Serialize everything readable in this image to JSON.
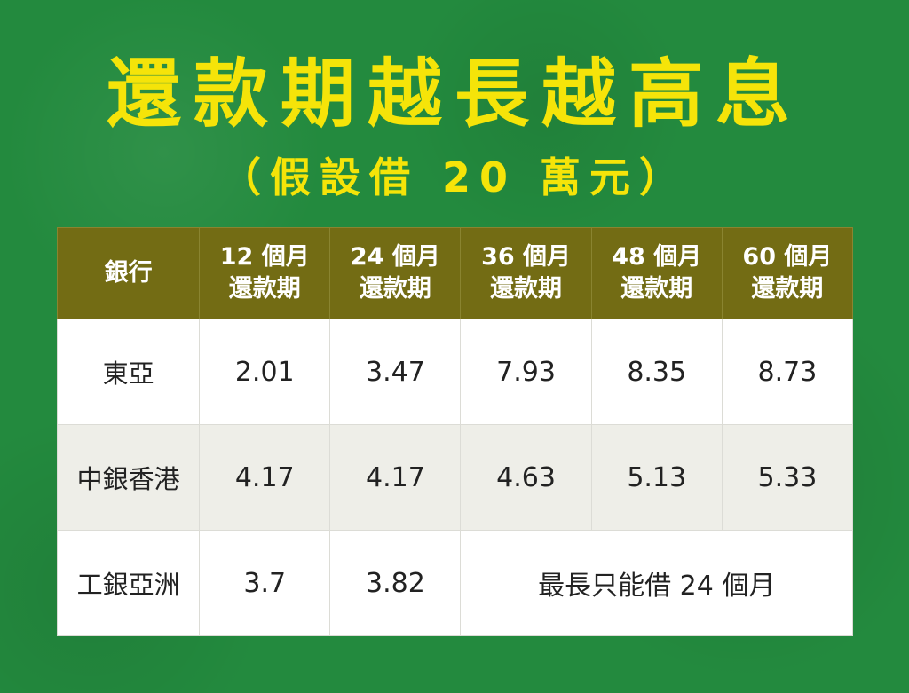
{
  "title": "還款期越長越高息",
  "subtitle": "（假設借 20 萬元）",
  "table": {
    "headers": [
      {
        "line1": "銀行",
        "line2": ""
      },
      {
        "line1": "12 個月",
        "line2": "還款期"
      },
      {
        "line1": "24 個月",
        "line2": "還款期"
      },
      {
        "line1": "36 個月",
        "line2": "還款期"
      },
      {
        "line1": "48 個月",
        "line2": "還款期"
      },
      {
        "line1": "60 個月",
        "line2": "還款期"
      }
    ],
    "rows": [
      {
        "bank": "東亞",
        "values": [
          "2.01",
          "3.47",
          "7.93",
          "8.35",
          "8.73"
        ]
      },
      {
        "bank": "中銀香港",
        "values": [
          "4.17",
          "4.17",
          "4.63",
          "5.13",
          "5.33"
        ]
      },
      {
        "bank": "工銀亞洲",
        "values": [
          "3.7",
          "3.82"
        ],
        "note": "最長只能借 24 個月"
      }
    ]
  },
  "colors": {
    "background": "#238a3e",
    "title": "#f5e409",
    "header_bg": "#736c14",
    "header_text": "#ffffff",
    "row_alt_bg": "#eeeee8"
  }
}
